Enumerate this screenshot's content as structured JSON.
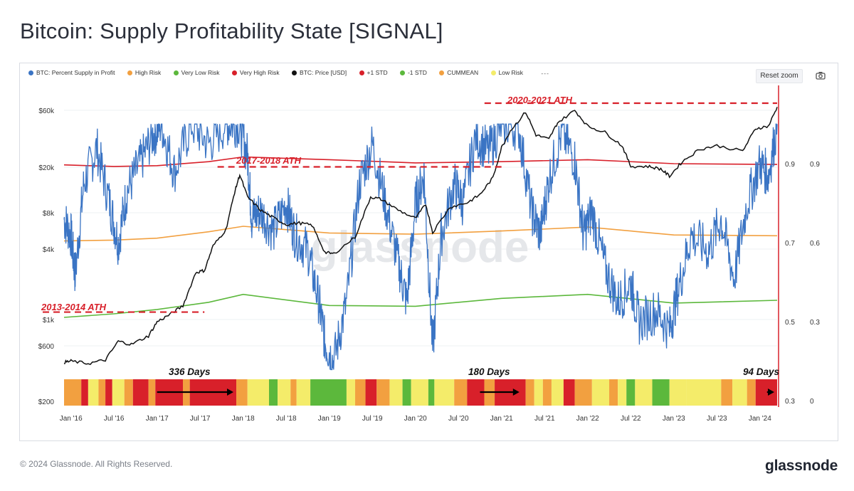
{
  "page": {
    "title": "Bitcoin: Supply Profitability State [SIGNAL]",
    "footer": "© 2024 Glassnode. All Rights Reserved.",
    "brand": "glassnode",
    "watermark": "glassnode",
    "reset_zoom": "Reset zoom"
  },
  "legend": [
    {
      "label": "BTC: Percent Supply in Profit",
      "color": "#3a74c4"
    },
    {
      "label": "High Risk",
      "color": "#f2a040"
    },
    {
      "label": "Very Low Risk",
      "color": "#5cb83c"
    },
    {
      "label": "Very High Risk",
      "color": "#d8202a"
    },
    {
      "label": "BTC: Price [USD]",
      "color": "#111111"
    },
    {
      "label": "+1 STD",
      "color": "#d8202a"
    },
    {
      "label": "-1 STD",
      "color": "#5cb83c"
    },
    {
      "label": "CUMMEAN",
      "color": "#f2a040"
    },
    {
      "label": "Low Risk",
      "color": "#f4ec6a"
    }
  ],
  "legend_more": "---",
  "chart_data": {
    "type": "line",
    "title": "Bitcoin: Supply Profitability State [SIGNAL]",
    "x_ticks": [
      "Jan '16",
      "Jul '16",
      "Jan '17",
      "Jul '17",
      "Jan '18",
      "Jul '18",
      "Jan '19",
      "Jul '19",
      "Jan '20",
      "Jul '20",
      "Jan '21",
      "Jul '21",
      "Jan '22",
      "Jul '22",
      "Jan '23",
      "Jul '23",
      "Jan '24"
    ],
    "y_left_ticks": [
      "$60k",
      "$20k",
      "$8k",
      "$4k",
      "$1k",
      "$600",
      "$200"
    ],
    "y_left_scale": "log",
    "y_left_range": [
      200,
      100000
    ],
    "y_mid_ticks": [
      "0.9",
      "0.7",
      "0.5",
      "0.3"
    ],
    "y_right_ticks": [
      "0.9",
      "0.6",
      "0.3",
      "0"
    ],
    "y_mid_range": [
      0.3,
      1.0
    ],
    "grid": true,
    "series": [
      {
        "name": "BTC: Price [USD]",
        "color": "#111111",
        "x": [
          2015.92,
          2016.0,
          2016.2,
          2016.4,
          2016.55,
          2016.7,
          2016.9,
          2017.0,
          2017.15,
          2017.3,
          2017.45,
          2017.55,
          2017.65,
          2017.8,
          2017.9,
          2017.96,
          2018.05,
          2018.2,
          2018.35,
          2018.5,
          2018.65,
          2018.8,
          2018.95,
          2019.05,
          2019.3,
          2019.48,
          2019.6,
          2019.8,
          2020.0,
          2020.12,
          2020.2,
          2020.4,
          2020.6,
          2020.75,
          2020.9,
          2021.0,
          2021.1,
          2021.28,
          2021.4,
          2021.55,
          2021.65,
          2021.85,
          2022.0,
          2022.2,
          2022.4,
          2022.5,
          2022.7,
          2022.85,
          2022.95,
          2023.1,
          2023.3,
          2023.5,
          2023.8,
          2023.95,
          2024.1,
          2024.2
        ],
        "y": [
          430,
          440,
          420,
          450,
          650,
          610,
          720,
          950,
          1100,
          1300,
          2500,
          2600,
          4200,
          5800,
          12000,
          17000,
          11000,
          8500,
          7300,
          6400,
          6600,
          6300,
          3700,
          3600,
          5000,
          11000,
          10500,
          8500,
          7200,
          9500,
          5500,
          9000,
          9800,
          11500,
          16000,
          29000,
          40000,
          58000,
          37000,
          34000,
          47000,
          60000,
          44000,
          39000,
          30000,
          20000,
          20000,
          19000,
          16500,
          22000,
          28000,
          30000,
          27000,
          42000,
          44000,
          64000
        ]
      },
      {
        "name": "BTC: Percent Supply in Profit",
        "color": "#3a74c4",
        "x": [
          2015.92,
          2016.0,
          2016.05,
          2016.15,
          2016.3,
          2016.45,
          2016.55,
          2016.65,
          2016.8,
          2016.95,
          2017.05,
          2017.2,
          2017.4,
          2017.6,
          2017.8,
          2017.95,
          2018.05,
          2018.1,
          2018.2,
          2018.35,
          2018.5,
          2018.6,
          2018.75,
          2018.88,
          2018.95,
          2019.05,
          2019.2,
          2019.35,
          2019.5,
          2019.65,
          2019.8,
          2019.9,
          2020.0,
          2020.1,
          2020.2,
          2020.3,
          2020.45,
          2020.55,
          2020.7,
          2020.85,
          2021.0,
          2021.2,
          2021.35,
          2021.45,
          2021.55,
          2021.7,
          2021.85,
          2021.95,
          2022.05,
          2022.2,
          2022.35,
          2022.5,
          2022.6,
          2022.8,
          2022.95,
          2023.05,
          2023.2,
          2023.4,
          2023.55,
          2023.7,
          2023.85,
          2024.0,
          2024.1,
          2024.2
        ],
        "y": [
          0.76,
          0.72,
          0.62,
          0.85,
          0.94,
          0.8,
          0.7,
          0.83,
          0.9,
          0.97,
          1.0,
          0.88,
          1.0,
          0.95,
          1.0,
          1.0,
          0.92,
          0.76,
          0.78,
          0.73,
          0.8,
          0.72,
          0.68,
          0.55,
          0.45,
          0.4,
          0.55,
          0.85,
          0.95,
          0.8,
          0.65,
          0.55,
          0.8,
          0.87,
          0.43,
          0.72,
          0.85,
          0.8,
          0.97,
          0.93,
          1.0,
          0.99,
          0.78,
          0.72,
          0.86,
          0.98,
          0.91,
          0.72,
          0.78,
          0.64,
          0.55,
          0.6,
          0.5,
          0.53,
          0.48,
          0.58,
          0.72,
          0.68,
          0.76,
          0.61,
          0.8,
          0.9,
          0.87,
          1.0
        ]
      },
      {
        "name": "+1 STD",
        "color": "#d8202a",
        "x": [
          2015.92,
          2016.5,
          2017.0,
          2017.6,
          2018.0,
          2019.0,
          2020.0,
          2021.0,
          2022.0,
          2023.0,
          2024.2
        ],
        "y": [
          0.897,
          0.893,
          0.895,
          0.905,
          0.917,
          0.91,
          0.902,
          0.905,
          0.91,
          0.9,
          0.898
        ]
      },
      {
        "name": "CUMMEAN",
        "color": "#f2a040",
        "x": [
          2015.92,
          2016.5,
          2017.0,
          2017.6,
          2018.0,
          2019.0,
          2020.0,
          2021.0,
          2022.0,
          2023.0,
          2024.2
        ],
        "y": [
          0.705,
          0.707,
          0.712,
          0.728,
          0.742,
          0.725,
          0.722,
          0.73,
          0.74,
          0.72,
          0.718
        ]
      },
      {
        "name": "-1 STD",
        "color": "#5cb83c",
        "x": [
          2015.92,
          2016.5,
          2017.0,
          2017.6,
          2018.0,
          2019.0,
          2020.0,
          2021.0,
          2022.0,
          2023.0,
          2024.2
        ],
        "y": [
          0.512,
          0.521,
          0.532,
          0.55,
          0.57,
          0.542,
          0.54,
          0.56,
          0.57,
          0.548,
          0.555
        ]
      }
    ],
    "signal_band": {
      "colors": {
        "very_high": "#d8202a",
        "high": "#f2a040",
        "low": "#f4ec6a",
        "very_low": "#5cb83c"
      },
      "segments": [
        [
          2015.92,
          2016.12,
          "high"
        ],
        [
          2016.12,
          2016.2,
          "very_high"
        ],
        [
          2016.2,
          2016.32,
          "low"
        ],
        [
          2016.32,
          2016.4,
          "high"
        ],
        [
          2016.4,
          2016.48,
          "very_high"
        ],
        [
          2016.48,
          2016.62,
          "low"
        ],
        [
          2016.62,
          2016.72,
          "high"
        ],
        [
          2016.72,
          2016.9,
          "very_high"
        ],
        [
          2016.9,
          2016.98,
          "high"
        ],
        [
          2016.98,
          2017.3,
          "very_high"
        ],
        [
          2017.3,
          2017.38,
          "high"
        ],
        [
          2017.38,
          2017.92,
          "very_high"
        ],
        [
          2017.92,
          2018.05,
          "high"
        ],
        [
          2018.05,
          2018.3,
          "low"
        ],
        [
          2018.3,
          2018.4,
          "very_low"
        ],
        [
          2018.4,
          2018.55,
          "low"
        ],
        [
          2018.55,
          2018.62,
          "high"
        ],
        [
          2018.62,
          2018.78,
          "low"
        ],
        [
          2018.78,
          2019.2,
          "very_low"
        ],
        [
          2019.2,
          2019.3,
          "low"
        ],
        [
          2019.3,
          2019.42,
          "high"
        ],
        [
          2019.42,
          2019.55,
          "very_high"
        ],
        [
          2019.55,
          2019.7,
          "high"
        ],
        [
          2019.7,
          2019.85,
          "low"
        ],
        [
          2019.85,
          2019.95,
          "very_low"
        ],
        [
          2019.95,
          2020.15,
          "low"
        ],
        [
          2020.15,
          2020.22,
          "very_low"
        ],
        [
          2020.22,
          2020.45,
          "low"
        ],
        [
          2020.45,
          2020.6,
          "high"
        ],
        [
          2020.6,
          2020.8,
          "very_high"
        ],
        [
          2020.8,
          2020.92,
          "high"
        ],
        [
          2020.92,
          2021.28,
          "very_high"
        ],
        [
          2021.28,
          2021.38,
          "high"
        ],
        [
          2021.38,
          2021.48,
          "low"
        ],
        [
          2021.48,
          2021.58,
          "high"
        ],
        [
          2021.58,
          2021.72,
          "low"
        ],
        [
          2021.72,
          2021.85,
          "very_high"
        ],
        [
          2021.85,
          2022.05,
          "high"
        ],
        [
          2022.05,
          2022.25,
          "low"
        ],
        [
          2022.25,
          2022.35,
          "high"
        ],
        [
          2022.35,
          2022.45,
          "low"
        ],
        [
          2022.45,
          2022.55,
          "very_low"
        ],
        [
          2022.55,
          2022.75,
          "low"
        ],
        [
          2022.75,
          2022.95,
          "very_low"
        ],
        [
          2022.95,
          2023.15,
          "low"
        ],
        [
          2023.15,
          2023.32,
          "low"
        ],
        [
          2023.32,
          2023.55,
          "low"
        ],
        [
          2023.55,
          2023.68,
          "high"
        ],
        [
          2023.68,
          2023.85,
          "low"
        ],
        [
          2023.85,
          2023.95,
          "high"
        ],
        [
          2023.95,
          2024.2,
          "very_high"
        ]
      ]
    },
    "ath_lines": [
      {
        "label": "2013-2014 ATH",
        "x0": 2015.92,
        "x1": 2017.55,
        "price": 1150
      },
      {
        "label": "2017-2018 ATH",
        "x0": 2017.95,
        "x1": 2021.0,
        "price": 19800
      },
      {
        "label": "2020-2021 ATH",
        "x0": 2021.05,
        "x1": 2024.2,
        "price": 69000
      }
    ],
    "cycle_annotations": [
      {
        "label": "336 Days",
        "x0": 2017.0,
        "x1": 2017.92
      },
      {
        "label": "180 Days",
        "x0": 2020.75,
        "x1": 2021.24
      },
      {
        "label": "94 Days",
        "x0": 2023.95,
        "x1": 2024.2
      }
    ]
  }
}
